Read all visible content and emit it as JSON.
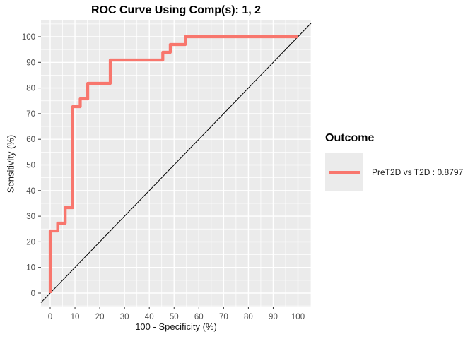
{
  "legend": {
    "title": "Outcome",
    "items": [
      {
        "label": "PreT2D vs T2D : 0.8797",
        "color": "#F8766D",
        "auc": 0.8797
      }
    ]
  },
  "colors": {
    "panel_bg": "#EBEBEB",
    "legend_key_bg": "#EBEBEB",
    "grid": "#FFFFFF",
    "roc_line": "#F8766D",
    "diagonal_line": "#000000",
    "tick_mark": "#333333",
    "tick_text": "#4D4D4D",
    "title_text": "#000000"
  },
  "chart_data": {
    "type": "line",
    "title": "ROC Curve Using Comp(s): 1, 2",
    "xlabel": "100 - Specificity (%)",
    "ylabel": "Sensitivity (%)",
    "x_ticks": [
      0,
      10,
      20,
      30,
      40,
      50,
      60,
      70,
      80,
      90,
      100
    ],
    "y_ticks": [
      0,
      10,
      20,
      30,
      40,
      50,
      60,
      70,
      80,
      90,
      100
    ],
    "xlim": [
      -3.7,
      105.3
    ],
    "ylim": [
      -5.2,
      106.3
    ],
    "grid": true,
    "legend_position": "right",
    "legend_title": "Outcome",
    "series": [
      {
        "name": "PreT2D vs T2D : 0.8797",
        "color": "#F8766D",
        "auc": 0.8797,
        "points": [
          [
            0,
            0
          ],
          [
            0,
            24.24
          ],
          [
            3.03,
            24.24
          ],
          [
            3.03,
            27.27
          ],
          [
            6.06,
            27.27
          ],
          [
            6.06,
            33.33
          ],
          [
            9.09,
            33.33
          ],
          [
            9.09,
            72.73
          ],
          [
            12.12,
            72.73
          ],
          [
            12.12,
            75.76
          ],
          [
            15.15,
            75.76
          ],
          [
            15.15,
            81.82
          ],
          [
            24.24,
            81.82
          ],
          [
            24.24,
            90.91
          ],
          [
            45.45,
            90.91
          ],
          [
            45.45,
            93.94
          ],
          [
            48.48,
            93.94
          ],
          [
            48.48,
            96.97
          ],
          [
            54.55,
            96.97
          ],
          [
            54.55,
            100
          ],
          [
            100,
            100
          ]
        ]
      },
      {
        "name": "chance-reference",
        "type": "diagonal",
        "from": [
          0,
          0
        ],
        "to": [
          100,
          100
        ],
        "color": "#000000"
      }
    ]
  }
}
